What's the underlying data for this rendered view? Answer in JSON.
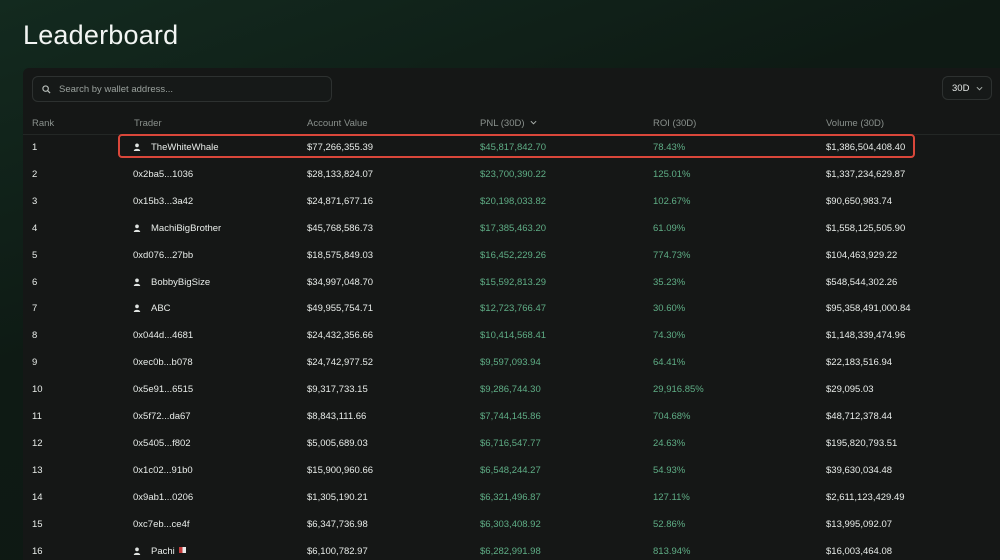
{
  "page": {
    "title": "Leaderboard"
  },
  "search": {
    "placeholder": "Search by wallet address..."
  },
  "period": {
    "selected": "30D"
  },
  "columns": {
    "rank": "Rank",
    "trader": "Trader",
    "account_value": "Account Value",
    "pnl": "PNL (30D)",
    "roi": "ROI (30D)",
    "volume": "Volume (30D)"
  },
  "rows": [
    {
      "rank": "1",
      "trader": "TheWhiteWhale",
      "named": true,
      "account_value": "$77,266,355.39",
      "pnl": "$45,817,842.70",
      "roi": "78.43%",
      "volume": "$1,386,504,408.40"
    },
    {
      "rank": "2",
      "trader": "0x2ba5...1036",
      "named": false,
      "account_value": "$28,133,824.07",
      "pnl": "$23,700,390.22",
      "roi": "125.01%",
      "volume": "$1,337,234,629.87"
    },
    {
      "rank": "3",
      "trader": "0x15b3...3a42",
      "named": false,
      "account_value": "$24,871,677.16",
      "pnl": "$20,198,033.82",
      "roi": "102.67%",
      "volume": "$90,650,983.74"
    },
    {
      "rank": "4",
      "trader": "MachiBigBrother",
      "named": true,
      "account_value": "$45,768,586.73",
      "pnl": "$17,385,463.20",
      "roi": "61.09%",
      "volume": "$1,558,125,505.90"
    },
    {
      "rank": "5",
      "trader": "0xd076...27bb",
      "named": false,
      "account_value": "$18,575,849.03",
      "pnl": "$16,452,229.26",
      "roi": "774.73%",
      "volume": "$104,463,929.22"
    },
    {
      "rank": "6",
      "trader": "BobbyBigSize",
      "named": true,
      "account_value": "$34,997,048.70",
      "pnl": "$15,592,813.29",
      "roi": "35.23%",
      "volume": "$548,544,302.26"
    },
    {
      "rank": "7",
      "trader": "ABC",
      "named": true,
      "account_value": "$49,955,754.71",
      "pnl": "$12,723,766.47",
      "roi": "30.60%",
      "volume": "$95,358,491,000.84"
    },
    {
      "rank": "8",
      "trader": "0x044d...4681",
      "named": false,
      "account_value": "$24,432,356.66",
      "pnl": "$10,414,568.41",
      "roi": "74.30%",
      "volume": "$1,148,339,474.96"
    },
    {
      "rank": "9",
      "trader": "0xec0b...b078",
      "named": false,
      "account_value": "$24,742,977.52",
      "pnl": "$9,597,093.94",
      "roi": "64.41%",
      "volume": "$22,183,516.94"
    },
    {
      "rank": "10",
      "trader": "0x5e91...6515",
      "named": false,
      "account_value": "$9,317,733.15",
      "pnl": "$9,286,744.30",
      "roi": "29,916.85%",
      "volume": "$29,095.03"
    },
    {
      "rank": "11",
      "trader": "0x5f72...da67",
      "named": false,
      "account_value": "$8,843,111.66",
      "pnl": "$7,744,145.86",
      "roi": "704.68%",
      "volume": "$48,712,378.44"
    },
    {
      "rank": "12",
      "trader": "0x5405...f802",
      "named": false,
      "account_value": "$5,005,689.03",
      "pnl": "$6,716,547.77",
      "roi": "24.63%",
      "volume": "$195,820,793.51"
    },
    {
      "rank": "13",
      "trader": "0x1c02...91b0",
      "named": false,
      "account_value": "$15,900,960.66",
      "pnl": "$6,548,244.27",
      "roi": "54.93%",
      "volume": "$39,630,034.48"
    },
    {
      "rank": "14",
      "trader": "0x9ab1...0206",
      "named": false,
      "account_value": "$1,305,190.21",
      "pnl": "$6,321,496.87",
      "roi": "127.11%",
      "volume": "$2,611,123,429.49"
    },
    {
      "rank": "15",
      "trader": "0xc7eb...ce4f",
      "named": false,
      "account_value": "$6,347,736.98",
      "pnl": "$6,303,408.92",
      "roi": "52.86%",
      "volume": "$13,995,092.07"
    },
    {
      "rank": "16",
      "trader": "Pachi",
      "named": true,
      "flag": true,
      "account_value": "$6,100,782.97",
      "pnl": "$6,282,991.98",
      "roi": "813.94%",
      "volume": "$16,003,464.08"
    }
  ],
  "colors": {
    "positive": "#5fae86",
    "highlight_border": "#d9473a",
    "panel": "#151716"
  },
  "icons": {
    "search": "search-icon",
    "period_chevron": "chevron-down-icon",
    "user": "user-icon",
    "sort": "sort-desc-icon"
  }
}
